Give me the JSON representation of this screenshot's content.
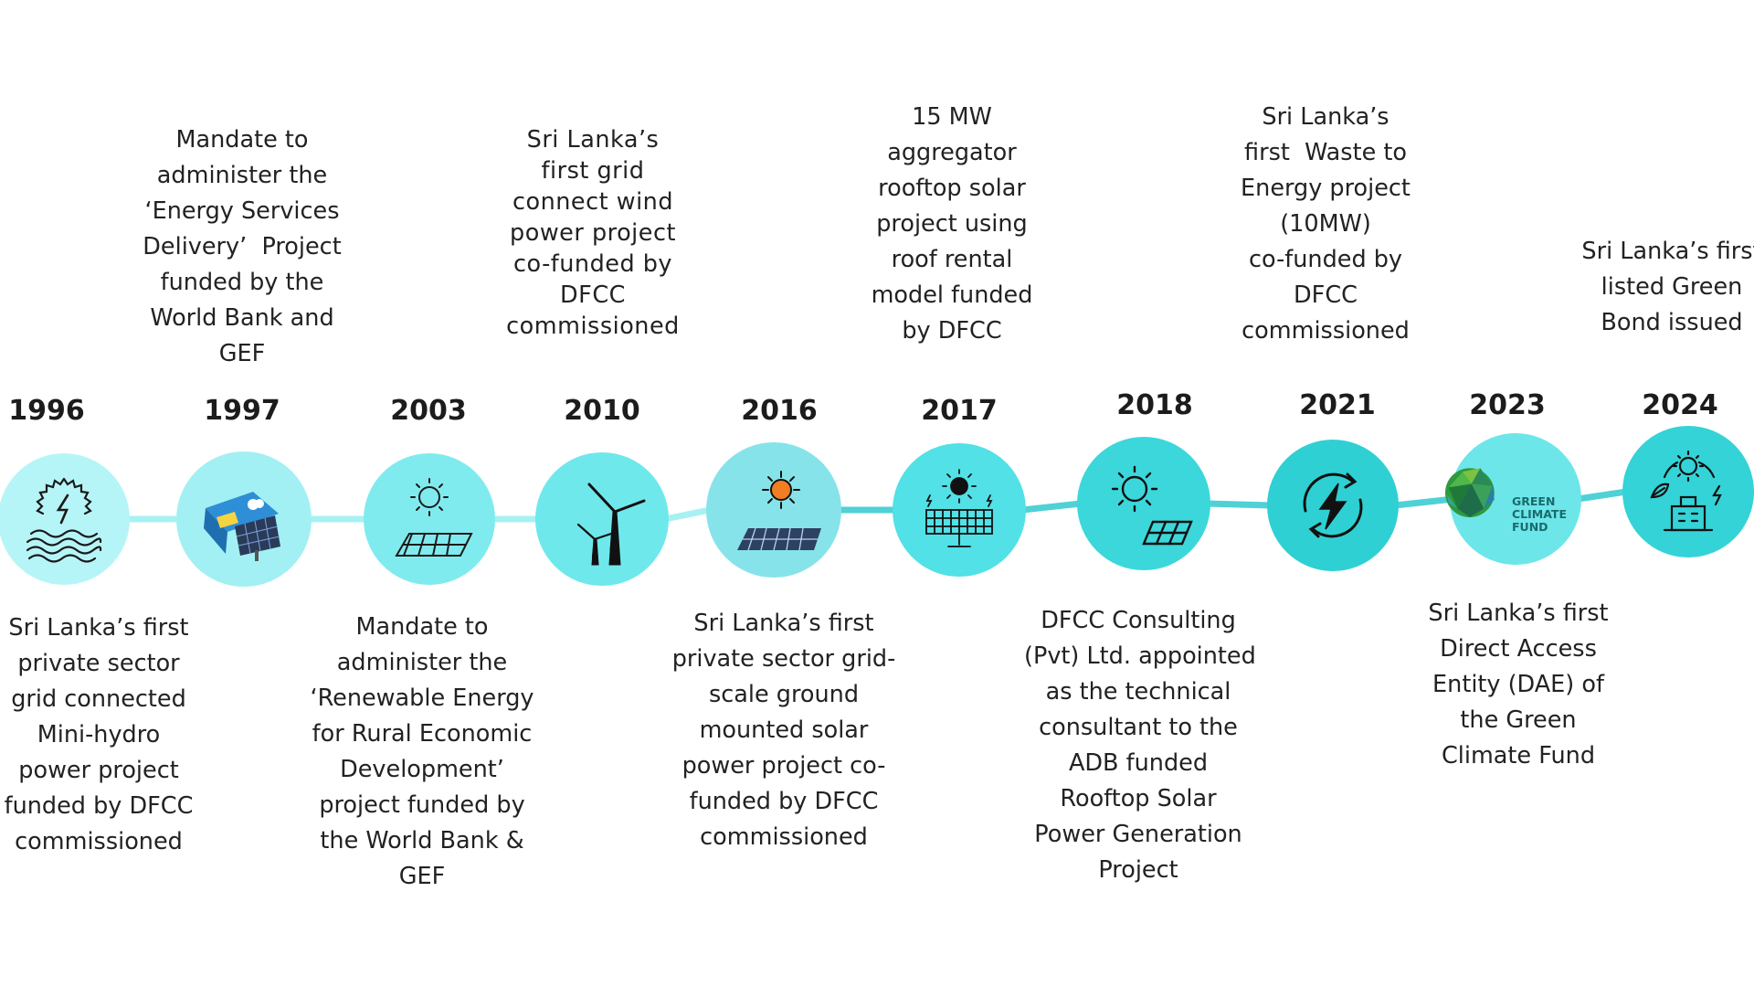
{
  "timeline": {
    "accent_color": "#4fd1d6",
    "events": [
      {
        "year": "1996",
        "icon": "hydro-power-icon",
        "text_position": "below",
        "lines": [
          "Sri Lanka’s first",
          "private sector",
          "grid connected",
          "Mini-hydro",
          "power project",
          "funded by DFCC",
          "commissioned"
        ]
      },
      {
        "year": "1997",
        "icon": "solar-home-system-icon",
        "text_position": "above",
        "lines": [
          "Mandate to",
          "administer the",
          "‘Energy Services",
          "Delivery’  Project",
          "funded by the",
          "World Bank and",
          "GEF"
        ]
      },
      {
        "year": "2003",
        "icon": "solar-panel-sun-icon",
        "text_position": "below",
        "lines": [
          "Mandate to",
          "administer the",
          "‘Renewable Energy",
          "for Rural Economic",
          "Development’",
          "project funded by",
          "the World Bank &",
          "GEF"
        ]
      },
      {
        "year": "2010",
        "icon": "wind-turbine-icon",
        "text_position": "above",
        "lines": [
          "Sri Lanka’s",
          "first grid",
          "connect wind",
          "power project",
          "co-funded by",
          "DFCC",
          "commissioned"
        ]
      },
      {
        "year": "2016",
        "icon": "ground-solar-farm-icon",
        "text_position": "below",
        "lines": [
          "Sri Lanka’s first",
          "private sector grid-",
          "scale ground",
          "mounted solar",
          "power project co-",
          "funded by DFCC",
          "commissioned"
        ]
      },
      {
        "year": "2017",
        "icon": "rooftop-solar-icon",
        "text_position": "above",
        "lines": [
          "15 MW",
          "aggregator",
          "rooftop solar",
          "project using",
          "roof rental",
          "model funded",
          "by DFCC"
        ]
      },
      {
        "year": "2018",
        "icon": "sun-solar-panel-icon",
        "text_position": "below",
        "lines": [
          "DFCC Consulting",
          "(Pvt) Ltd. appointed",
          "as the technical",
          "consultant to the",
          "ADB funded",
          "Rooftop Solar",
          "Power Generation",
          "Project"
        ]
      },
      {
        "year": "2021",
        "icon": "renewable-energy-cycle-icon",
        "text_position": "above",
        "lines": [
          "Sri Lanka’s",
          "first  Waste to",
          "Energy project",
          "(10MW)",
          "co-funded by",
          "DFCC",
          "commissioned"
        ]
      },
      {
        "year": "2023",
        "icon": "green-climate-fund-logo",
        "logo_text": [
          "GREEN",
          "CLIMATE",
          "FUND"
        ],
        "text_position": "below",
        "lines": [
          "Sri Lanka’s first",
          "Direct Access",
          "Entity (DAE) of",
          "the Green",
          "Climate Fund"
        ]
      },
      {
        "year": "2024",
        "icon": "green-bond-icon",
        "text_position": "above",
        "lines": [
          "Sri Lanka’s first",
          "listed Green",
          "Bond issued"
        ]
      }
    ]
  }
}
